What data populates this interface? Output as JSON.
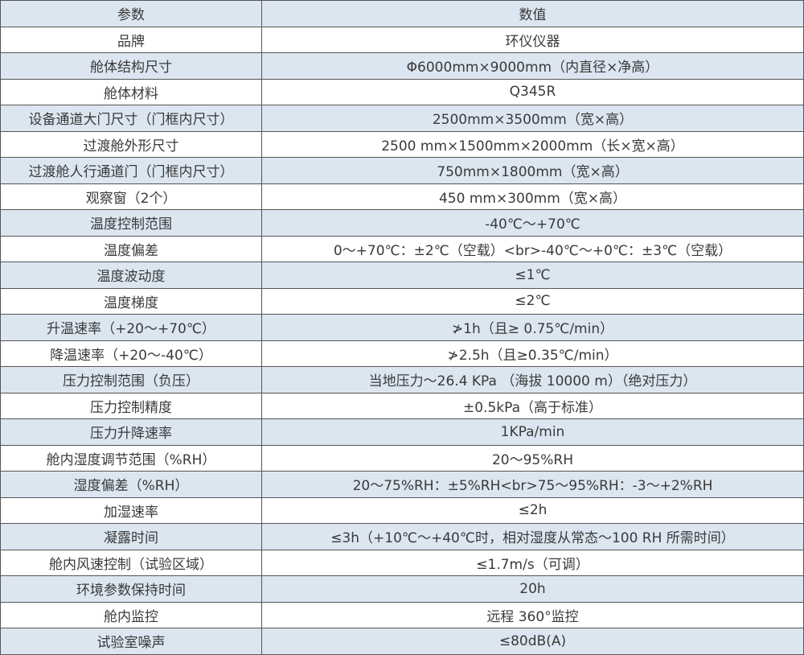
{
  "table": {
    "headers": [
      "参数",
      "数值"
    ],
    "rows": [
      [
        "品牌",
        "环仪仪器"
      ],
      [
        "舱体结构尺寸",
        "Φ6000mm×9000mm（内直径×净高）"
      ],
      [
        "舱体材料",
        "Q345R"
      ],
      [
        "设备通道大门尺寸（门框内尺寸）",
        "2500mm×3500mm（宽×高）"
      ],
      [
        "过渡舱外形尺寸",
        "2500 mm×1500mm×2000mm（长×宽×高）"
      ],
      [
        "过渡舱人行通道门（门框内尺寸）",
        "750mm×1800mm（宽×高）"
      ],
      [
        "观察窗（2个）",
        "450 mm×300mm（宽×高）"
      ],
      [
        "温度控制范围",
        "-40℃～+70℃"
      ],
      [
        "温度偏差",
        "0～+70℃：±2℃（空载）<br>-40℃～+0℃：±3℃（空载）"
      ],
      [
        "温度波动度",
        "≤1℃"
      ],
      [
        "温度梯度",
        "≤2℃"
      ],
      [
        "升温速率（+20～+70℃）",
        "≯1h（且≥ 0.75℃/min）"
      ],
      [
        "降温速率（+20～-40℃）",
        "≯2.5h（且≥0.35℃/min）"
      ],
      [
        "压力控制范围（负压）",
        "当地压力～26.4 KPa （海拔 10000 m）（绝对压力）"
      ],
      [
        "压力控制精度",
        "±0.5kPa（高于标准）"
      ],
      [
        "压力升降速率",
        "1KPa/min"
      ],
      [
        "舱内湿度调节范围（%RH）",
        "20～95%RH"
      ],
      [
        "湿度偏差（%RH）",
        "20～75%RH：±5%RH<br>75～95%RH：-3～+2%RH"
      ],
      [
        "加湿速率",
        "≤2h"
      ],
      [
        "凝露时间",
        "≤3h（+10℃～+40℃时，相对湿度从常态～100 RH 所需时间）"
      ],
      [
        "舱内风速控制（试验区域）",
        "≤1.7m/s（可调）"
      ],
      [
        "环境参数保持时间",
        "20h"
      ],
      [
        "舱内监控",
        "远程 360°监控"
      ],
      [
        "试验室噪声",
        "≤80dB(A)"
      ]
    ]
  }
}
